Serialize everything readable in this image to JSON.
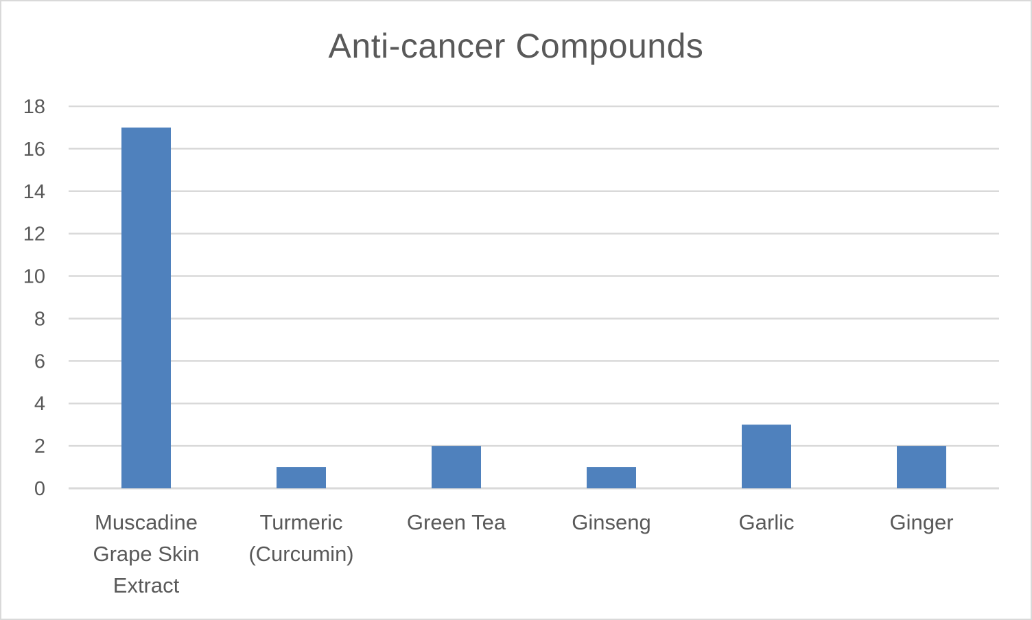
{
  "chart_data": {
    "type": "bar",
    "title": "Anti-cancer Compounds",
    "xlabel": "",
    "ylabel": "",
    "categories": [
      "Muscadine Grape Skin Extract",
      "Turmeric (Curcumin)",
      "Green Tea",
      "Ginseng",
      "Garlic",
      "Ginger"
    ],
    "category_lines": [
      [
        "Muscadine",
        "Grape Skin",
        "Extract"
      ],
      [
        "Turmeric",
        "(Curcumin)"
      ],
      [
        "Green Tea"
      ],
      [
        "Ginseng"
      ],
      [
        "Garlic"
      ],
      [
        "Ginger"
      ]
    ],
    "values": [
      17,
      1,
      2,
      1,
      3,
      2
    ],
    "ylim": [
      0,
      18
    ],
    "yticks": [
      0,
      2,
      4,
      6,
      8,
      10,
      12,
      14,
      16,
      18
    ],
    "grid": true,
    "legend": "none",
    "bar_color": "#4f81bd",
    "grid_color": "#d9d9d9",
    "text_color": "#595959"
  }
}
